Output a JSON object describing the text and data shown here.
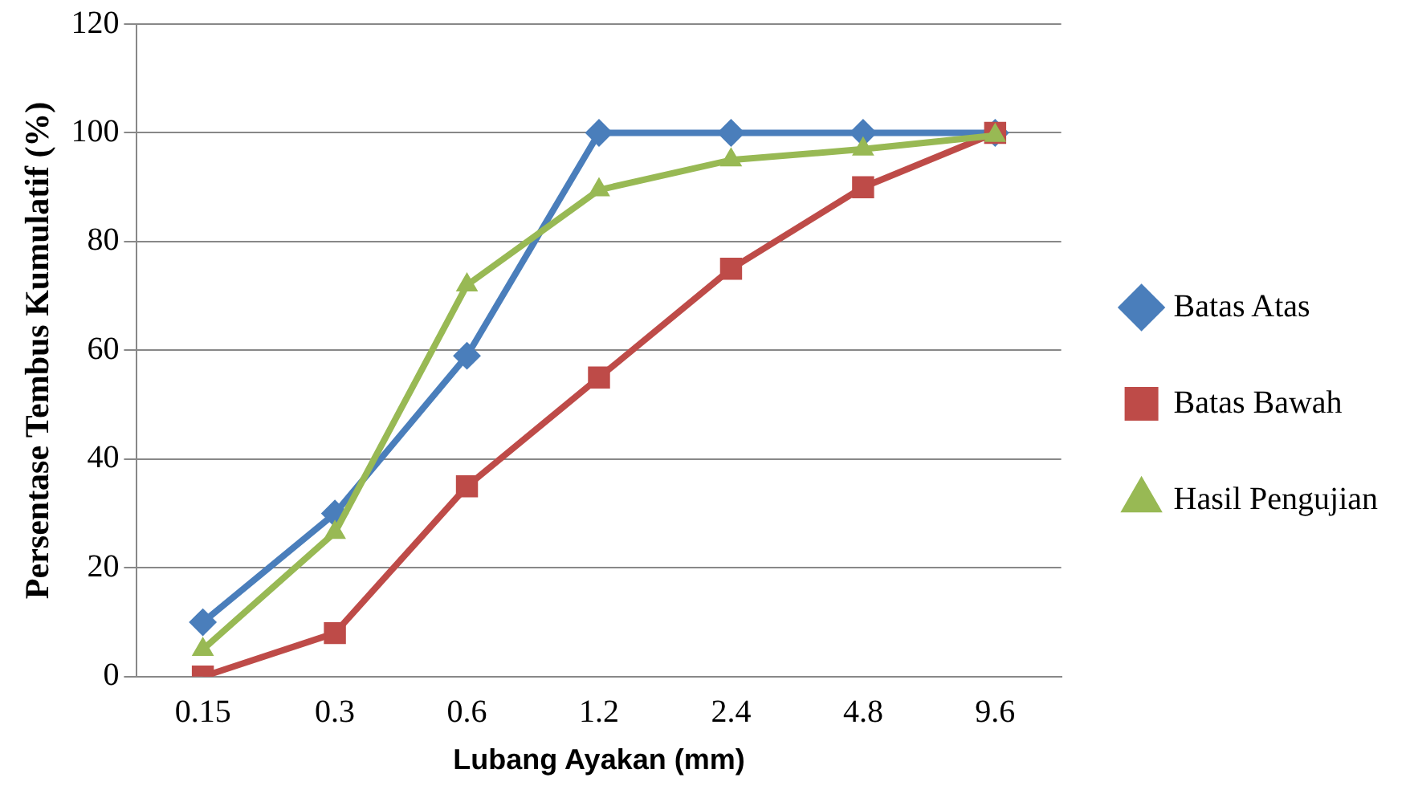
{
  "chart_data": {
    "type": "line",
    "xlabel": "Lubang Ayakan (mm)",
    "ylabel": "Persentase Tembus Kumulatif (%)",
    "categories": [
      "0.15",
      "0.3",
      "0.6",
      "1.2",
      "2.4",
      "4.8",
      "9.6"
    ],
    "series": [
      {
        "name": "Batas Atas",
        "color": "#4a7ebb",
        "marker": "diamond",
        "values": [
          10,
          30,
          59,
          100,
          100,
          100,
          100
        ]
      },
      {
        "name": "Batas Bawah",
        "color": "#be4b48",
        "marker": "square",
        "values": [
          0,
          8,
          35,
          55,
          75,
          90,
          100
        ]
      },
      {
        "name": "Hasil Pengujian",
        "color": "#98b954",
        "marker": "triangle",
        "values": [
          5,
          26.5,
          72,
          89.5,
          95,
          97,
          99.5
        ]
      }
    ],
    "ylim": [
      0,
      120
    ],
    "yticks": [
      0,
      20,
      40,
      60,
      80,
      100,
      120
    ],
    "grid": "y",
    "legend": "right",
    "line_style": "solid"
  }
}
